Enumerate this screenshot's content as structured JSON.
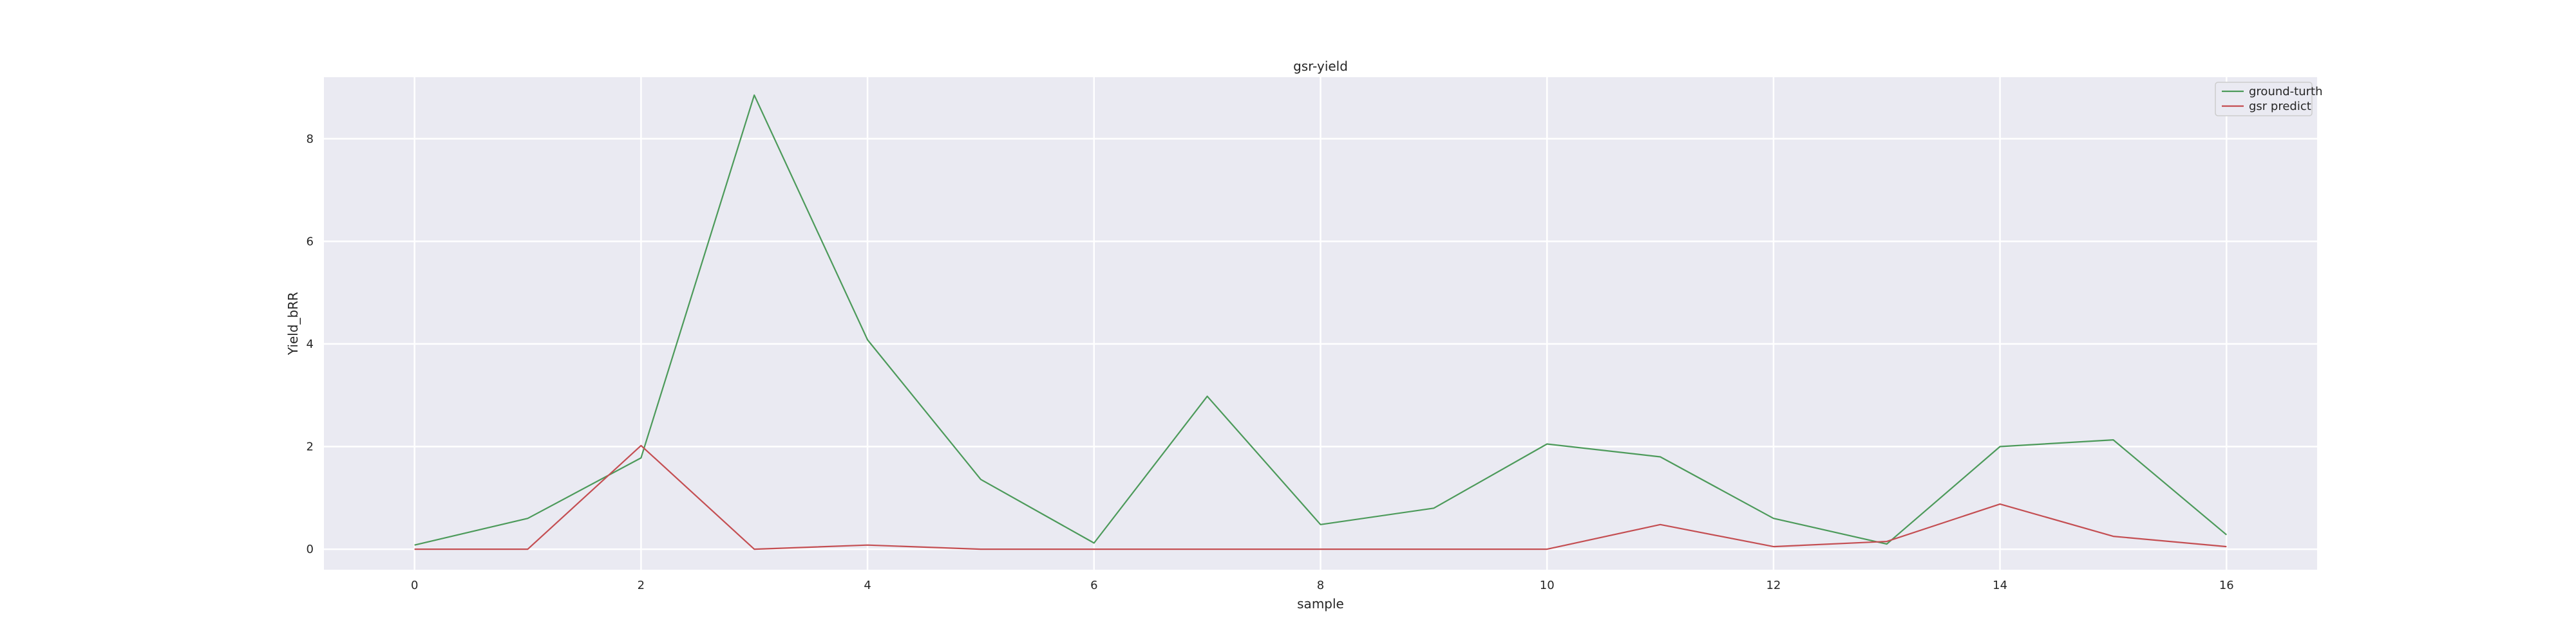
{
  "chart_data": {
    "type": "line",
    "title": "gsr-yield",
    "xlabel": "sample",
    "ylabel": "Yield_bRR",
    "x": [
      0,
      1,
      2,
      3,
      4,
      5,
      6,
      7,
      8,
      9,
      10,
      11,
      12,
      13,
      14,
      15,
      16
    ],
    "xlim": [
      -0.8,
      16.8
    ],
    "ylim": [
      -0.4,
      9.2
    ],
    "xticks": [
      0,
      2,
      4,
      6,
      8,
      10,
      12,
      14,
      16
    ],
    "yticks": [
      0,
      2,
      4,
      6,
      8
    ],
    "grid": true,
    "legend": "top-right",
    "series": [
      {
        "name": "ground-turth",
        "color": "#4c9a5a",
        "values": [
          0.08,
          0.6,
          1.78,
          8.85,
          4.08,
          1.36,
          0.12,
          2.98,
          0.48,
          0.8,
          2.05,
          1.8,
          0.6,
          0.1,
          2.0,
          2.13,
          0.28
        ]
      },
      {
        "name": "gsr predict",
        "color": "#c44e52",
        "values": [
          0.0,
          0.0,
          2.02,
          0.0,
          0.08,
          0.0,
          0.0,
          0.0,
          0.0,
          0.0,
          0.0,
          0.48,
          0.05,
          0.15,
          0.88,
          0.25,
          0.05
        ]
      }
    ]
  }
}
